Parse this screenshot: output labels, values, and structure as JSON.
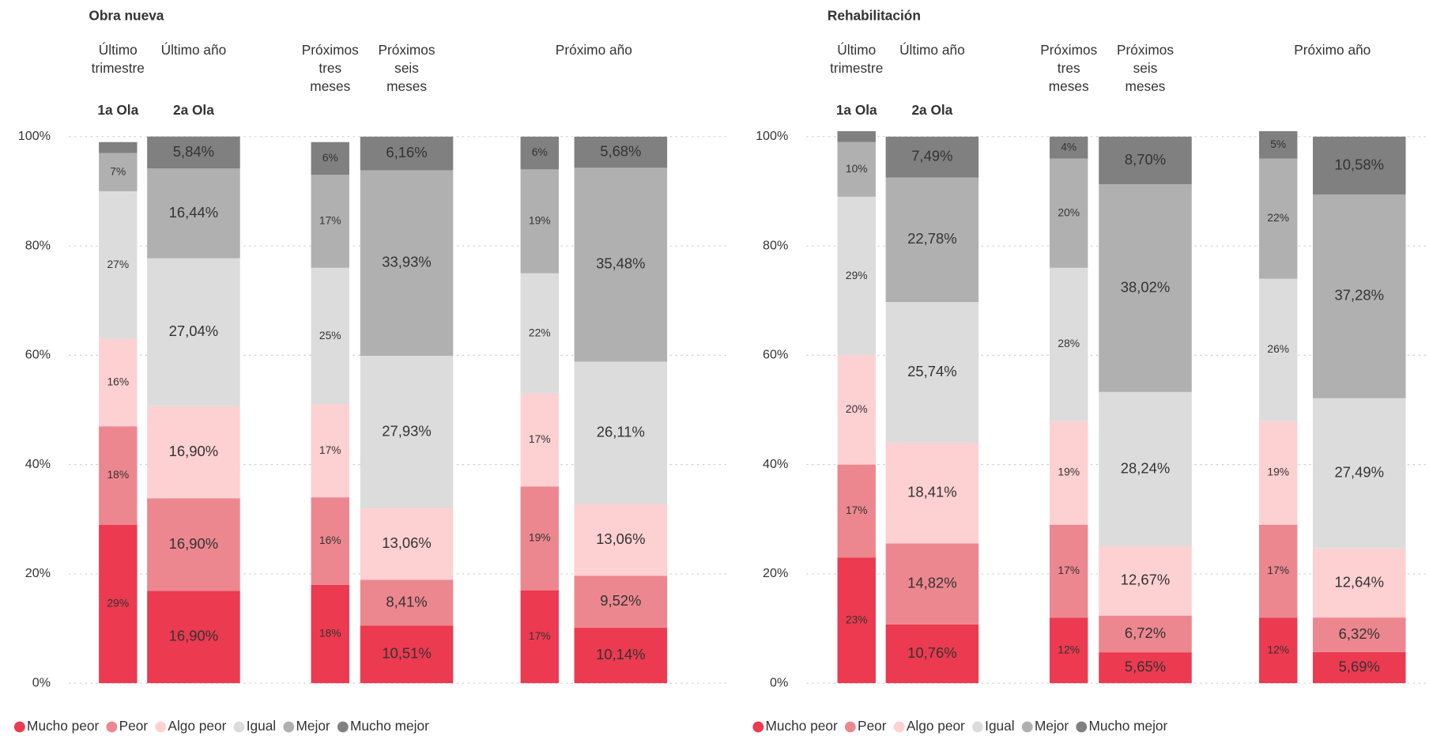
{
  "chart_data": [
    {
      "type": "bar",
      "stacked": true,
      "title": "Obra nueva",
      "categories": [
        "Último trimestre",
        "Último año",
        "Próximos tres meses",
        "Próximos seis meses",
        "Próximo año",
        null
      ],
      "wave_labels": [
        "1a Ola",
        "2a Ola"
      ],
      "ylim": [
        0,
        100
      ],
      "yticks": [
        {
          "value": 0,
          "label": "0%"
        },
        {
          "value": 20,
          "label": "20%"
        },
        {
          "value": 40,
          "label": "40%"
        },
        {
          "value": 60,
          "label": "60%"
        },
        {
          "value": 80,
          "label": "80%"
        },
        {
          "value": 100,
          "label": "100%"
        }
      ],
      "grid": true,
      "legend": "bottom",
      "series": [
        {
          "name": "Mucho peor",
          "color": "#ec3a50",
          "values": [
            29,
            16.9,
            18,
            10.51,
            17,
            10.14
          ],
          "value_labels": [
            "29%",
            "16,90%",
            "18%",
            "10,51%",
            "17%",
            "10,14%"
          ]
        },
        {
          "name": "Peor",
          "color": "#ec878f",
          "values": [
            18,
            16.9,
            16,
            8.41,
            19,
            9.52
          ],
          "value_labels": [
            "18%",
            "16,90%",
            "16%",
            "8,41%",
            "19%",
            "9,52%"
          ]
        },
        {
          "name": "Algo peor",
          "color": "#fdd0d2",
          "values": [
            16,
            16.9,
            17,
            13.06,
            17,
            13.06
          ],
          "value_labels": [
            "16%",
            "16,90%",
            "17%",
            "13,06%",
            "17%",
            "13,06%"
          ]
        },
        {
          "name": "Igual",
          "color": "#dcdcdc",
          "values": [
            27,
            27.04,
            25,
            27.93,
            22,
            26.11
          ],
          "value_labels": [
            "27%",
            "27,04%",
            "25%",
            "27,93%",
            "22%",
            "26,11%"
          ]
        },
        {
          "name": "Mejor",
          "color": "#b0b0b0",
          "values": [
            7,
            16.44,
            17,
            33.93,
            19,
            35.48
          ],
          "value_labels": [
            "7%",
            "16,44%",
            "17%",
            "33,93%",
            "19%",
            "35,48%"
          ]
        },
        {
          "name": "Mucho mejor",
          "color": "#808080",
          "values": [
            2,
            5.84,
            6,
            6.16,
            6,
            5.68
          ],
          "value_labels": [
            null,
            "5,84%",
            "6%",
            "6,16%",
            "6%",
            "5,68%"
          ]
        }
      ]
    },
    {
      "type": "bar",
      "stacked": true,
      "title": "Rehabilitación",
      "categories": [
        "Último trimestre",
        "Último año",
        "Próximos tres meses",
        "Próximos seis meses",
        "Próximo año",
        null
      ],
      "wave_labels": [
        "1a Ola",
        "2a Ola"
      ],
      "ylim": [
        0,
        100
      ],
      "yticks": [
        {
          "value": 0,
          "label": "0%"
        },
        {
          "value": 20,
          "label": "20%"
        },
        {
          "value": 40,
          "label": "40%"
        },
        {
          "value": 60,
          "label": "60%"
        },
        {
          "value": 80,
          "label": "80%"
        },
        {
          "value": 100,
          "label": "100%"
        }
      ],
      "grid": true,
      "legend": "bottom",
      "series": [
        {
          "name": "Mucho peor",
          "color": "#ec3a50",
          "values": [
            23,
            10.76,
            12,
            5.65,
            12,
            5.69
          ],
          "value_labels": [
            "23%",
            "10,76%",
            "12%",
            "5,65%",
            "12%",
            "5,69%"
          ]
        },
        {
          "name": "Peor",
          "color": "#ec878f",
          "values": [
            17,
            14.82,
            17,
            6.72,
            17,
            6.32
          ],
          "value_labels": [
            "17%",
            "14,82%",
            "17%",
            "6,72%",
            "17%",
            "6,32%"
          ]
        },
        {
          "name": "Algo peor",
          "color": "#fdd0d2",
          "values": [
            20,
            18.41,
            19,
            12.67,
            19,
            12.64
          ],
          "value_labels": [
            "20%",
            "18,41%",
            "19%",
            "12,67%",
            "19%",
            "12,64%"
          ]
        },
        {
          "name": "Igual",
          "color": "#dcdcdc",
          "values": [
            29,
            25.74,
            28,
            28.24,
            26,
            27.49
          ],
          "value_labels": [
            "29%",
            "25,74%",
            "28%",
            "28,24%",
            "26%",
            "27,49%"
          ]
        },
        {
          "name": "Mejor",
          "color": "#b0b0b0",
          "values": [
            10,
            22.78,
            20,
            38.02,
            22,
            37.28
          ],
          "value_labels": [
            "10%",
            "22,78%",
            "20%",
            "38,02%",
            "22%",
            "37,28%"
          ]
        },
        {
          "name": "Mucho mejor",
          "color": "#808080",
          "values": [
            2,
            7.49,
            4,
            8.7,
            5,
            10.58
          ],
          "value_labels": [
            null,
            "7,49%",
            "4%",
            "8,70%",
            "5%",
            "10,58%"
          ]
        }
      ]
    }
  ]
}
